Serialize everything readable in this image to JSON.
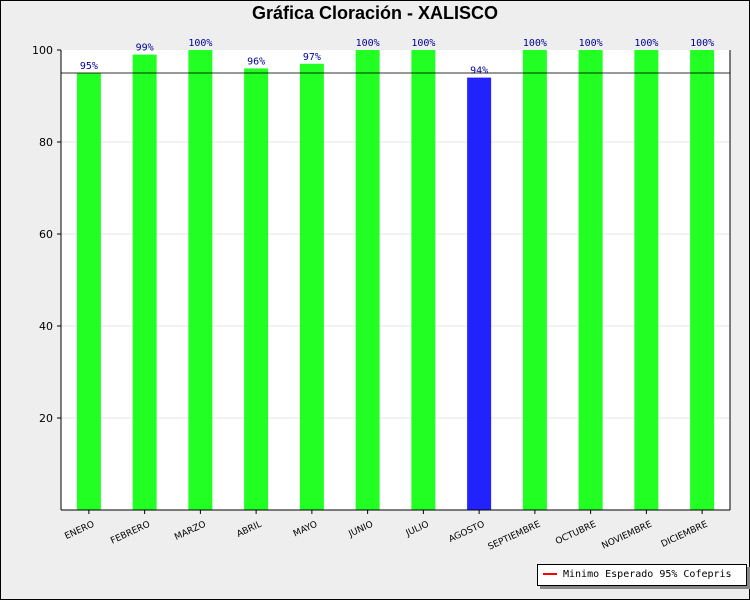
{
  "chart_data": {
    "type": "bar",
    "title": "Gráfica Cloración - XALISCO",
    "categories": [
      "ENERO",
      "FEBRERO",
      "MARZO",
      "ABRIL",
      "MAYO",
      "JUNIO",
      "JULIO",
      "AGOSTO",
      "SEPTIEMBRE",
      "OCTUBRE",
      "NOVIEMBRE",
      "DICIEMBRE"
    ],
    "values": [
      95,
      99,
      100,
      96,
      97,
      100,
      100,
      94,
      100,
      100,
      100,
      100
    ],
    "data_labels": [
      "95%",
      "99%",
      "100%",
      "96%",
      "97%",
      "100%",
      "100%",
      "94%",
      "100%",
      "100%",
      "100%",
      "100%"
    ],
    "ylim": [
      0,
      100
    ],
    "yticks": [
      20,
      40,
      60,
      80,
      100
    ],
    "threshold": 95,
    "legend": {
      "label": "Minimo Esperado 95% Cofepris",
      "position": "bottom-right"
    },
    "colors": {
      "ok": "#22ff22",
      "below": "#2222ff",
      "threshold": "#ff0000",
      "label": "#000099"
    },
    "grid": true,
    "xlabel": "",
    "ylabel": ""
  }
}
